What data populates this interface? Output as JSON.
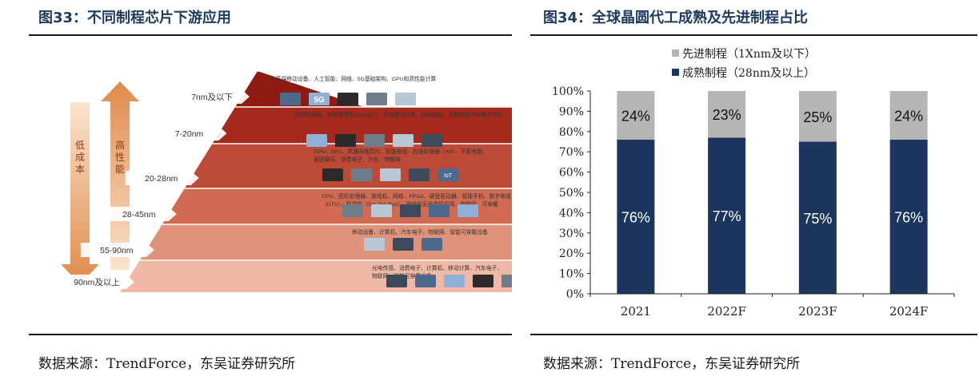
{
  "left": {
    "title": "图33：不同制程芯片下游应用",
    "source_prefix": "数据来源：",
    "source_text": "TrendForce，东吴证券研究所",
    "arrow_down_label": "低\n成\n本",
    "arrow_up_label": "高\n性\n能",
    "arrow_down_chars": [
      "低",
      "成",
      "本"
    ],
    "arrow_up_chars": [
      "高",
      "性",
      "能"
    ],
    "tiers": [
      {
        "node": "7nm及以下",
        "apps": [
          "中高端移动设备、人工智能、网络、5G基础架构、GPU和高性能计算"
        ]
      },
      {
        "node": "7-20nm",
        "apps": [
          "应用处理器、蜂窝基带和ASIC设计、高端移动计算、网络通信、消费类和汽车电子应用"
        ]
      },
      {
        "node": "20-28nm",
        "apps": [
          "GPU、SPU、高速网络芯片、智能电话、应用处理器（AP）、平板电脑、",
          "家庭娱乐、消费电子、汽车、物联网"
        ]
      },
      {
        "node": "28-45nm",
        "apps": [
          "CPU、图形处理器、游戏机、网络、FPGA、硬盘驱动器、智能手机、数字电视",
          "（DTV）、机顶盒（Set-Top-Box）、游戏和无线连接应用、物联网、可穿戴"
        ]
      },
      {
        "node": "55-90nm",
        "apps": [
          "移动设备、计算机、汽车电子、物联网、智能可穿戴设备"
        ]
      },
      {
        "node": "90nm及以上",
        "apps": [
          "光电传感、消费电子、计算机、移动计算、汽车电子、",
          "物联网、智能可穿戴设备"
        ]
      }
    ],
    "badge_5g": "5G",
    "badge_iot": "IoT"
  },
  "right": {
    "title": "图34：全球晶圆代工成熟及先进制程占比",
    "source_prefix": "数据来源：",
    "source_text": "TrendForce，东吴证券研究所"
  },
  "chart_data": {
    "type": "bar",
    "stacked": true,
    "categories": [
      "2021",
      "2022F",
      "2023F",
      "2024F"
    ],
    "series": [
      {
        "name": "成熟制程（28nm及以上）",
        "values": [
          76,
          77,
          75,
          76
        ],
        "labels": [
          "76%",
          "77%",
          "75%",
          "76%"
        ],
        "color": "#1c355e",
        "label_color": "#ffffff"
      },
      {
        "name": "先进制程（1Xnm及以下）",
        "values": [
          24,
          23,
          25,
          24
        ],
        "labels": [
          "24%",
          "23%",
          "25%",
          "24%"
        ],
        "color": "#b5b5b5",
        "label_color": "#111111"
      }
    ],
    "legend_order": [
      1,
      0
    ],
    "legend_position": "top-left",
    "y_ticks": [
      "0%",
      "10%",
      "20%",
      "30%",
      "40%",
      "50%",
      "60%",
      "70%",
      "80%",
      "90%",
      "100%"
    ],
    "ylim": [
      0,
      100
    ],
    "grid": false
  }
}
